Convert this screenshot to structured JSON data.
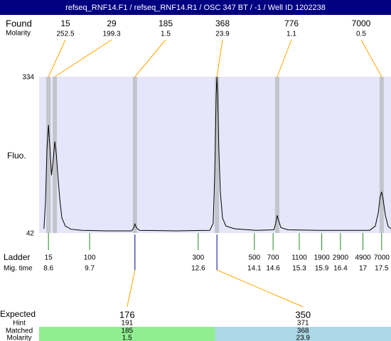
{
  "chart_data": {
    "type": "electropherogram",
    "title": "refseq_RNF14.F1 / refseq_RNF14.R1 / OSC 347 BT / -1 / Well ID 1202238",
    "found": {
      "label": "Found",
      "molarity_label": "Molarity",
      "sizes": [
        15,
        29,
        185,
        368,
        776,
        7000
      ],
      "molarity": [
        252.5,
        199.3,
        1.5,
        23.9,
        1.1,
        0.5
      ],
      "times": [
        8.6,
        8.77,
        10.91,
        13.1,
        14.71,
        17.5
      ]
    },
    "ylabel": "Fluo.",
    "ylim": [
      42,
      334
    ],
    "yticks": [
      42,
      334
    ],
    "xlim": [
      8.35,
      17.75
    ],
    "trace": {
      "color": "#000000",
      "x": [
        8.48,
        8.52,
        8.56,
        8.6,
        8.64,
        8.68,
        8.73,
        8.77,
        8.81,
        8.86,
        8.91,
        8.96,
        9.05,
        9.2,
        9.49,
        10.15,
        10.82,
        10.88,
        10.91,
        10.95,
        11.03,
        12.05,
        12.91,
        13.0,
        13.04,
        13.08,
        13.1,
        13.12,
        13.15,
        13.19,
        13.25,
        13.34,
        13.57,
        14.14,
        14.62,
        14.67,
        14.71,
        14.75,
        14.81,
        15.0,
        15.85,
        17.18,
        17.33,
        17.41,
        17.46,
        17.5,
        17.54,
        17.6,
        17.67,
        17.75
      ],
      "y": [
        50,
        100,
        200,
        244,
        200,
        150,
        180,
        213,
        190,
        140,
        100,
        70,
        55,
        49,
        47,
        46,
        46,
        52,
        59,
        52,
        47,
        46,
        47,
        60,
        150,
        300,
        334,
        300,
        200,
        120,
        70,
        55,
        50,
        47,
        48,
        60,
        75,
        65,
        52,
        48,
        47,
        47,
        55,
        80,
        110,
        119,
        105,
        75,
        55,
        50
      ]
    },
    "ladder": {
      "label": "Ladder",
      "time_label": "Mig. time",
      "sizes": [
        15,
        100,
        300,
        500,
        700,
        1100,
        1900,
        2900,
        4900,
        7000
      ],
      "times": [
        8.6,
        9.7,
        12.6,
        14.1,
        14.6,
        15.3,
        15.9,
        16.4,
        17,
        17.5
      ]
    },
    "expected": {
      "label": "Expected",
      "hint_label": "Hint",
      "matched_label": "Matched",
      "molarity_label": "Molarity",
      "sizes": [
        176,
        350
      ],
      "hint": [
        191,
        371
      ],
      "matched": [
        185,
        368
      ],
      "molarity": [
        1.5,
        23.9
      ],
      "colors": [
        "#90ee90",
        "#add8e6"
      ]
    },
    "colors": {
      "title_bg": "#000080",
      "title_text": "#ffffff",
      "plot_bg": "#e6e6fa",
      "band": "#c4c4cc",
      "connector": "#ffa500",
      "match_line": "#00008b",
      "ladder_tick": "#228b22"
    }
  }
}
